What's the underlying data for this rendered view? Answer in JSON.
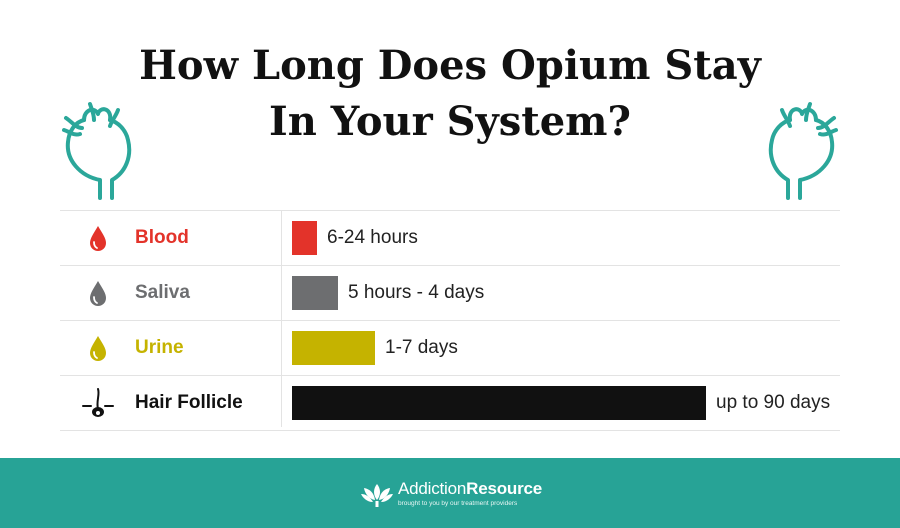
{
  "title": {
    "line1": "How Long Does Opium Stay",
    "line2": "In Your System?"
  },
  "chart_data": {
    "type": "bar",
    "orientation": "horizontal",
    "categories": [
      "Blood",
      "Saliva",
      "Urine",
      "Hair Follicle"
    ],
    "value_labels": [
      "6-24 hours",
      "5 hours - 4 days",
      "1-7 days",
      "up to 90 days"
    ],
    "approx_max_days": [
      1,
      4,
      7,
      90
    ],
    "bar_fraction": [
      0.06,
      0.11,
      0.2,
      1.0
    ],
    "colors": [
      "#e3332a",
      "#6d6e70",
      "#c5b300",
      "#111111"
    ],
    "label_colors": [
      "#e3332a",
      "#6d6e70",
      "#c5b300",
      "#111111"
    ],
    "icons": [
      "blood-drop-icon",
      "saliva-drop-icon",
      "urine-drop-icon",
      "hair-follicle-icon"
    ]
  },
  "footer": {
    "brand_part1": "Addiction",
    "brand_part2": "Resource",
    "tagline": "brought to you by our treatment providers",
    "background": "#27a396"
  }
}
